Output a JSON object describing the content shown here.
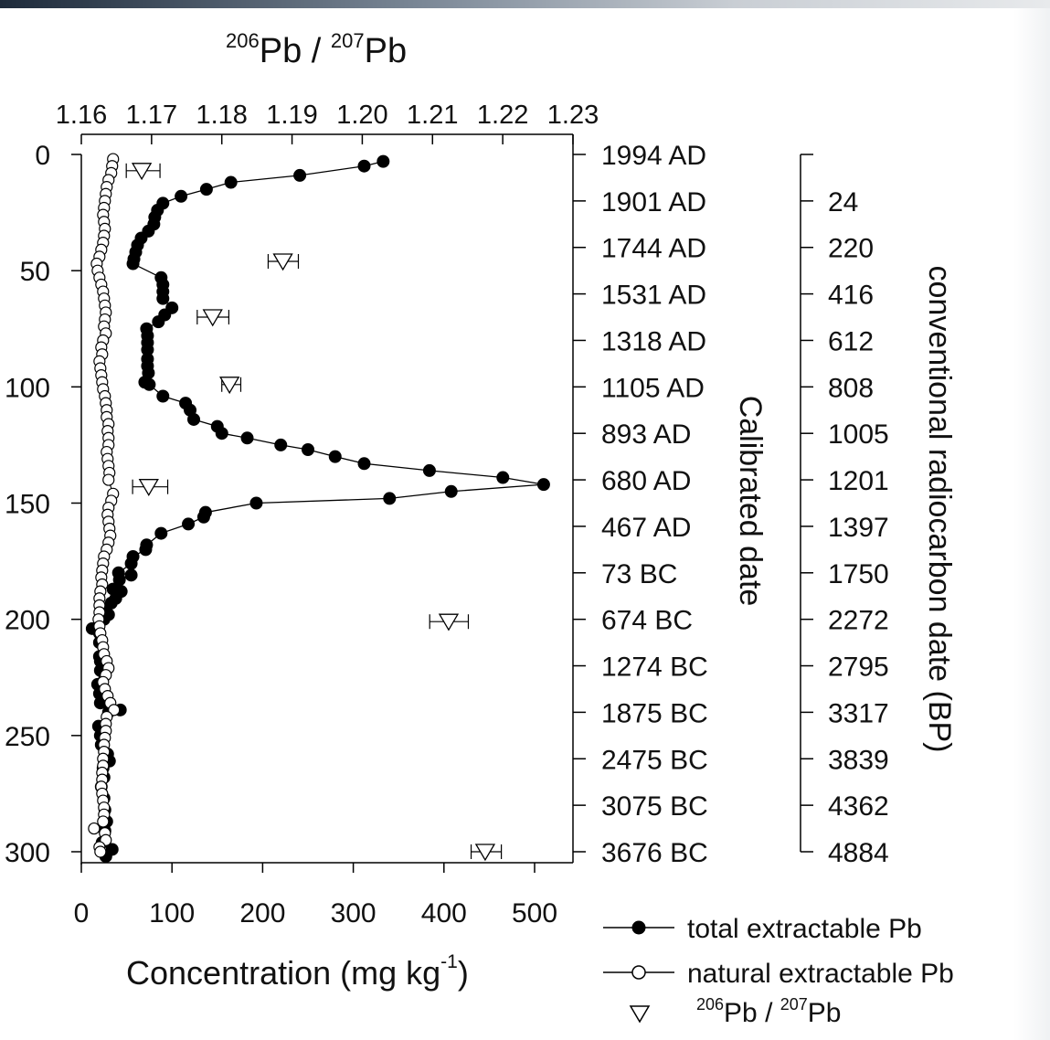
{
  "chart_data": {
    "type": "scatter",
    "depth_axis": {
      "ylim": [
        0,
        300
      ],
      "ticks": [
        0,
        50,
        100,
        150,
        200,
        250,
        300
      ]
    },
    "concentration_axis": {
      "xlim": [
        0,
        525
      ],
      "ticks": [
        0,
        100,
        200,
        300,
        400,
        500
      ],
      "label": "Concentration (mg kg",
      "label_exp": "-1",
      "label_end": ")"
    },
    "ratio_axis": {
      "xlim": [
        1.16,
        1.23
      ],
      "ticks": [
        "1.16",
        "1.17",
        "1.18",
        "1.19",
        "1.20",
        "1.21",
        "1.22",
        "1.23"
      ],
      "label_parts": [
        "206",
        "Pb / ",
        "207",
        "Pb"
      ]
    },
    "calibrated_axis": {
      "label": "Calibrated date",
      "ticks": [
        "1994 AD",
        "1901 AD",
        "1744 AD",
        "1531 AD",
        "1318 AD",
        "1105 AD",
        "893 AD",
        "680 AD",
        "467 AD",
        "73 BC",
        "674 BC",
        "1274 BC",
        "1875 BC",
        "2475 BC",
        "3075 BC",
        "3676 BC"
      ],
      "tick_depths": [
        0,
        20,
        40,
        60,
        80,
        100,
        120,
        140,
        160,
        180,
        200,
        220,
        240,
        260,
        280,
        300
      ]
    },
    "radiocarbon_axis": {
      "label": "conventional radiocarbon date (BP)",
      "ticks": [
        "24",
        "220",
        "416",
        "612",
        "808",
        "1005",
        "1201",
        "1397",
        "1750",
        "2272",
        "2795",
        "3317",
        "3839",
        "4362",
        "4884"
      ],
      "tick_depths": [
        20,
        40,
        60,
        80,
        100,
        120,
        140,
        160,
        180,
        200,
        220,
        240,
        260,
        280,
        300
      ]
    },
    "series": [
      {
        "name": "total extractable Pb",
        "marker": "filled-circle",
        "color": "#000000",
        "points": [
          [
            333,
            3
          ],
          [
            312,
            5
          ],
          [
            241,
            9
          ],
          [
            165,
            12
          ],
          [
            138,
            15
          ],
          [
            110,
            18
          ],
          [
            90,
            21
          ],
          [
            84,
            24
          ],
          [
            81,
            27
          ],
          [
            80,
            30
          ],
          [
            74,
            33
          ],
          [
            66,
            36
          ],
          [
            62,
            39
          ],
          [
            60,
            42
          ],
          [
            58,
            45
          ],
          [
            57,
            47
          ],
          [
            88,
            53
          ],
          [
            90,
            56
          ],
          [
            90,
            59
          ],
          [
            90,
            62
          ],
          [
            100,
            66
          ],
          [
            92,
            69
          ],
          [
            85,
            72
          ],
          [
            72,
            75
          ],
          [
            73,
            78
          ],
          [
            73,
            81
          ],
          [
            73,
            84
          ],
          [
            73,
            88
          ],
          [
            73,
            91
          ],
          [
            74,
            94
          ],
          [
            70,
            98
          ],
          [
            75,
            99
          ],
          [
            90,
            104
          ],
          [
            115,
            107
          ],
          [
            120,
            110
          ],
          [
            124,
            114
          ],
          [
            150,
            117
          ],
          [
            155,
            120
          ],
          [
            183,
            122
          ],
          [
            220,
            125
          ],
          [
            250,
            127
          ],
          [
            280,
            130
          ],
          [
            312,
            133
          ],
          [
            384,
            136
          ],
          [
            465,
            139
          ],
          [
            510,
            142
          ],
          [
            408,
            145
          ],
          [
            340,
            148
          ],
          [
            193,
            150
          ],
          [
            137,
            154
          ],
          [
            135,
            156
          ],
          [
            118,
            159
          ],
          [
            88,
            163
          ],
          [
            72,
            168
          ],
          [
            71,
            170
          ],
          [
            57,
            173
          ],
          [
            55,
            176
          ],
          [
            41,
            180
          ],
          [
            55,
            181
          ],
          [
            42,
            183
          ],
          [
            35,
            187
          ],
          [
            44,
            188
          ],
          [
            38,
            191
          ],
          [
            33,
            193
          ],
          [
            26,
            196
          ],
          [
            30,
            198
          ],
          [
            25,
            200
          ],
          [
            12,
            204
          ],
          [
            20,
            206
          ],
          [
            20,
            210
          ],
          [
            20,
            216
          ],
          [
            21,
            218
          ],
          [
            21,
            222
          ],
          [
            18,
            228
          ],
          [
            20,
            232
          ],
          [
            21,
            236
          ],
          [
            30,
            240
          ],
          [
            43,
            239
          ],
          [
            19,
            246
          ],
          [
            21,
            250
          ],
          [
            22,
            254
          ],
          [
            29,
            258
          ],
          [
            31,
            261
          ],
          [
            24,
            264
          ],
          [
            25,
            268
          ],
          [
            22,
            272
          ],
          [
            25,
            277
          ],
          [
            26,
            282
          ],
          [
            28,
            287
          ],
          [
            26,
            291
          ],
          [
            23,
            296
          ],
          [
            34,
            299
          ],
          [
            27,
            302
          ]
        ]
      },
      {
        "name": "natural extractable Pb",
        "marker": "open-circle",
        "color": "#000000",
        "points": [
          [
            35,
            2
          ],
          [
            34,
            5
          ],
          [
            33,
            8
          ],
          [
            30,
            11
          ],
          [
            28,
            14
          ],
          [
            27,
            17
          ],
          [
            26,
            20
          ],
          [
            25,
            23
          ],
          [
            24,
            26
          ],
          [
            25,
            29
          ],
          [
            26,
            32
          ],
          [
            25,
            35
          ],
          [
            24,
            38
          ],
          [
            22,
            41
          ],
          [
            20,
            44
          ],
          [
            17,
            47
          ],
          [
            18,
            50
          ],
          [
            20,
            53
          ],
          [
            22,
            56
          ],
          [
            24,
            59
          ],
          [
            25,
            62
          ],
          [
            26,
            65
          ],
          [
            27,
            68
          ],
          [
            26,
            71
          ],
          [
            25,
            74
          ],
          [
            27,
            77
          ],
          [
            24,
            80
          ],
          [
            22,
            83
          ],
          [
            23,
            86
          ],
          [
            20,
            89
          ],
          [
            21,
            92
          ],
          [
            22,
            95
          ],
          [
            23,
            98
          ],
          [
            24,
            101
          ],
          [
            26,
            104
          ],
          [
            27,
            107
          ],
          [
            28,
            110
          ],
          [
            28,
            113
          ],
          [
            30,
            116
          ],
          [
            29,
            119
          ],
          [
            30,
            122
          ],
          [
            30,
            125
          ],
          [
            28,
            128
          ],
          [
            29,
            131
          ],
          [
            30,
            134
          ],
          [
            31,
            137
          ],
          [
            30,
            140
          ],
          [
            35,
            146
          ],
          [
            33,
            149
          ],
          [
            30,
            152
          ],
          [
            29,
            155
          ],
          [
            30,
            158
          ],
          [
            31,
            161
          ],
          [
            32,
            164
          ],
          [
            30,
            167
          ],
          [
            28,
            170
          ],
          [
            25,
            173
          ],
          [
            24,
            176
          ],
          [
            23,
            179
          ],
          [
            22,
            182
          ],
          [
            23,
            185
          ],
          [
            21,
            188
          ],
          [
            20,
            191
          ],
          [
            20,
            194
          ],
          [
            20,
            197
          ],
          [
            19,
            200
          ],
          [
            20,
            203
          ],
          [
            21,
            206
          ],
          [
            23,
            209
          ],
          [
            24,
            212
          ],
          [
            25,
            215
          ],
          [
            28,
            218
          ],
          [
            30,
            221
          ],
          [
            27,
            224
          ],
          [
            24,
            227
          ],
          [
            26,
            230
          ],
          [
            29,
            233
          ],
          [
            32,
            236
          ],
          [
            36,
            239
          ],
          [
            28,
            242
          ],
          [
            27,
            245
          ],
          [
            27,
            248
          ],
          [
            26,
            251
          ],
          [
            25,
            254
          ],
          [
            25,
            257
          ],
          [
            24,
            260
          ],
          [
            24,
            263
          ],
          [
            23,
            266
          ],
          [
            23,
            269
          ],
          [
            22,
            272
          ],
          [
            23,
            275
          ],
          [
            24,
            278
          ],
          [
            25,
            281
          ],
          [
            25,
            284
          ],
          [
            24,
            287
          ],
          [
            14,
            290
          ],
          [
            26,
            292
          ],
          [
            27,
            295
          ],
          [
            20,
            298
          ],
          [
            21,
            300
          ]
        ]
      },
      {
        "name_parts": [
          "206",
          "Pb / ",
          "207",
          "Pb"
        ],
        "marker": "open-triangle-down",
        "color": "#000000",
        "points": [
          [
            1.1686,
            7,
            1.1664,
            1.1712
          ],
          [
            1.1887,
            46,
            1.1866,
            1.1909
          ],
          [
            1.1787,
            70,
            1.1765,
            1.181
          ],
          [
            1.1811,
            99,
            1.18,
            1.1827
          ],
          [
            1.1696,
            143,
            1.1673,
            1.1723
          ],
          [
            1.2123,
            201,
            1.2096,
            1.2151
          ],
          [
            1.2175,
            300,
            1.2155,
            1.2198
          ]
        ]
      }
    ],
    "legend_position": "bottom-right",
    "grid": false
  }
}
